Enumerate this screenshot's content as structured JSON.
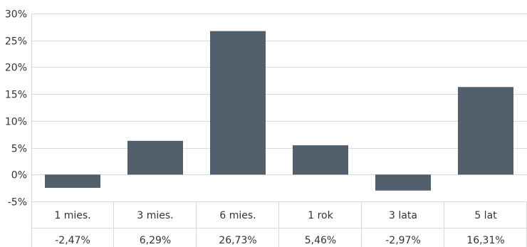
{
  "chart_data": {
    "type": "bar",
    "categories": [
      "1 mies.",
      "3 mies.",
      "6 mies.",
      "1 rok",
      "3 lata",
      "5 lat"
    ],
    "values": [
      -2.47,
      6.29,
      26.73,
      5.46,
      -2.97,
      16.31
    ],
    "value_labels": [
      "-2,47%",
      "6,29%",
      "26,73%",
      "5,46%",
      "-2,97%",
      "16,31%"
    ],
    "y_ticks": [
      -5,
      0,
      5,
      10,
      15,
      20,
      25,
      30
    ],
    "y_tick_labels": [
      "-5%",
      "0%",
      "5%",
      "10%",
      "15%",
      "20%",
      "25%",
      "30%"
    ],
    "ylim": [
      -5,
      30
    ],
    "grid": true,
    "data_table": true,
    "bar_color": "#505f6b",
    "grid_color": "#d9d9d9"
  }
}
